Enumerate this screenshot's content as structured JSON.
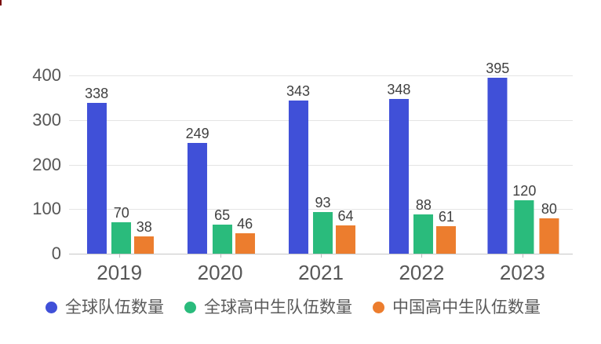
{
  "chart_data": {
    "type": "bar",
    "title": "",
    "xlabel": "",
    "ylabel": "",
    "categories": [
      "2019",
      "2020",
      "2021",
      "2022",
      "2023"
    ],
    "series": [
      {
        "name": "全球队伍数量",
        "color": "#4050d8",
        "values": [
          338,
          249,
          343,
          348,
          395
        ]
      },
      {
        "name": "全球高中生队伍数量",
        "color": "#2abb7c",
        "values": [
          70,
          65,
          93,
          88,
          120
        ]
      },
      {
        "name": "中国高中生队伍数量",
        "color": "#ec7d2e",
        "values": [
          38,
          46,
          64,
          61,
          80
        ]
      }
    ],
    "ylim": [
      0,
      400
    ],
    "yticks": [
      0,
      100,
      200,
      300,
      400
    ],
    "grid": true,
    "legend_position": "bottom",
    "value_labels_shown": true
  },
  "colors": {
    "background": "#ffffff",
    "gridline": "#e4e4e4",
    "axis_line": "#c7c7c7",
    "axis_text": "#565656",
    "value_text": "#404040",
    "legend_text": "#5a5a5a",
    "corner_mark": "#7a0c0c"
  }
}
